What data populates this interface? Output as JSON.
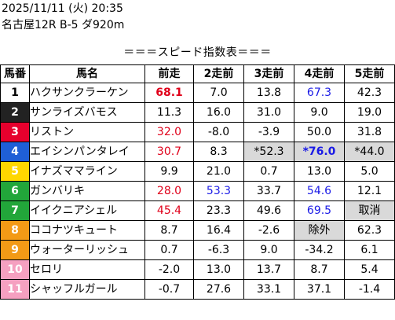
{
  "header": {
    "line1": "2025/11/11 (火) 20:35",
    "line2": "名古屋12R B-5 ダ920m"
  },
  "subtitle": "＝＝＝スピード指数表＝＝＝",
  "table": {
    "columns": [
      "馬番",
      "馬名",
      "前走",
      "2走前",
      "3走前",
      "4走前",
      "5走前"
    ],
    "rows": [
      {
        "num": "1",
        "name": "ハクサンクラーケン",
        "vals": [
          "68.1",
          "7.0",
          "13.8",
          "67.3",
          "42.3"
        ]
      },
      {
        "num": "2",
        "name": "サンライズバモス",
        "vals": [
          "11.3",
          "16.0",
          "31.0",
          "9.0",
          "19.0"
        ]
      },
      {
        "num": "3",
        "name": "リストン",
        "vals": [
          "32.0",
          "-8.0",
          "-3.9",
          "50.0",
          "31.8"
        ]
      },
      {
        "num": "4",
        "name": "エイシンパンタレイ",
        "vals": [
          "30.7",
          "8.3",
          "*52.3",
          "*76.0",
          "*44.0"
        ]
      },
      {
        "num": "5",
        "name": "イナズママライン",
        "vals": [
          "9.9",
          "21.0",
          "0.7",
          "13.0",
          "5.0"
        ]
      },
      {
        "num": "6",
        "name": "ガンバリキ",
        "vals": [
          "28.0",
          "53.3",
          "33.7",
          "54.6",
          "12.1"
        ]
      },
      {
        "num": "7",
        "name": "イイクニアシェル",
        "vals": [
          "45.4",
          "23.3",
          "49.6",
          "69.5",
          "取消"
        ]
      },
      {
        "num": "8",
        "name": "ココナツキュート",
        "vals": [
          "8.7",
          "16.4",
          "-2.6",
          "除外",
          "62.3"
        ]
      },
      {
        "num": "9",
        "name": "ウォーターリッシュ",
        "vals": [
          "0.7",
          "-6.3",
          "9.0",
          "-34.2",
          "6.1"
        ]
      },
      {
        "num": "10",
        "name": "セロリ",
        "vals": [
          "-2.0",
          "13.0",
          "13.7",
          "8.7",
          "5.4"
        ]
      },
      {
        "num": "11",
        "name": "シャッフルガール",
        "vals": [
          "-0.7",
          "27.6",
          "33.1",
          "37.1",
          "-1.4"
        ]
      }
    ]
  },
  "colors": {
    "frame_1": "#ffffff",
    "frame_1_text": "#000000",
    "frame_2": "#222222",
    "frame_2_text": "#ffffff",
    "frame_3": "#e6002d",
    "frame_3_text": "#ffffff",
    "frame_4": "#1f5fd6",
    "frame_4_text": "#ffffff",
    "frame_5": "#ffd700",
    "frame_5_text": "#ffffff",
    "frame_6": "#22a63a",
    "frame_6_text": "#ffffff",
    "frame_7": "#f39a16",
    "frame_7_text": "#ffffff",
    "frame_8": "#f5a0c0",
    "frame_8_text": "#ffffff",
    "value_red": "#e0001a",
    "value_blue": "#1a1ae6",
    "shaded_cell": "#d9d9d9"
  }
}
